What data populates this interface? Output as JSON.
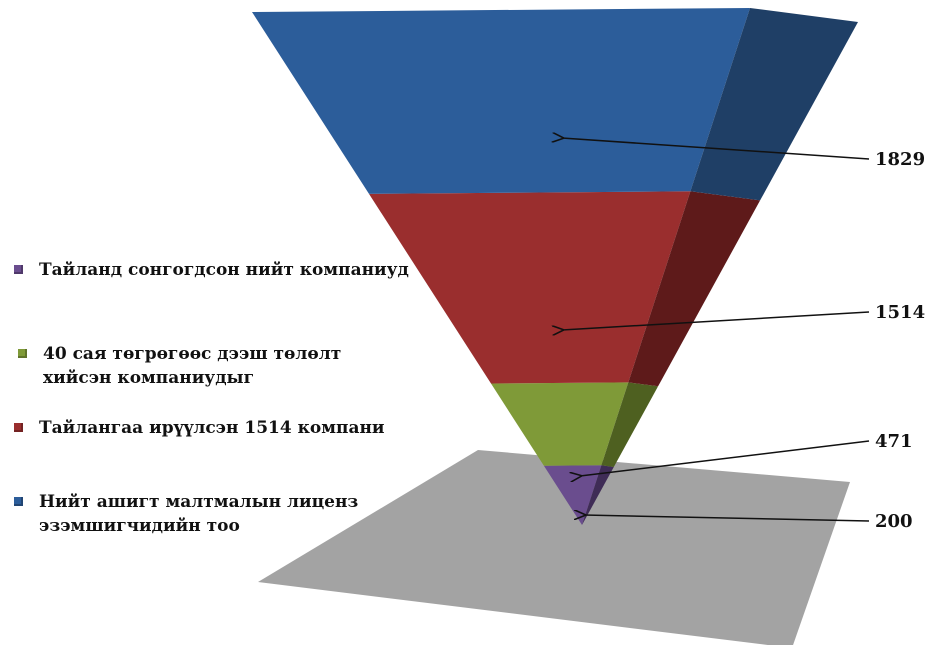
{
  "chart_data": {
    "type": "funnel",
    "title": "",
    "series": [
      {
        "name": "Нийт ашигт малтмалын лиценз эзэмшигчидийн тоо",
        "value": 1829,
        "color": "#2c5d9a",
        "side_color": "#1f3f66"
      },
      {
        "name": "Тайлангаа ирүүлсэн 1514 компани",
        "value": 1514,
        "color": "#9a2e2e",
        "side_color": "#5e1a1a"
      },
      {
        "name": "40 сая төгрөгөөс дээш төлөлт хийсэн компаниудыг",
        "value": 471,
        "color": "#7f9a38",
        "side_color": "#4e6020"
      },
      {
        "name": "Тайланд сонгогдсон нийт компаниуд",
        "value": 200,
        "color": "#6a4d8e",
        "side_color": "#3f2c56"
      }
    ],
    "legend_position": "left",
    "legend_order": [
      3,
      2,
      1,
      0
    ],
    "shadow_color": "#9e9e9e"
  }
}
